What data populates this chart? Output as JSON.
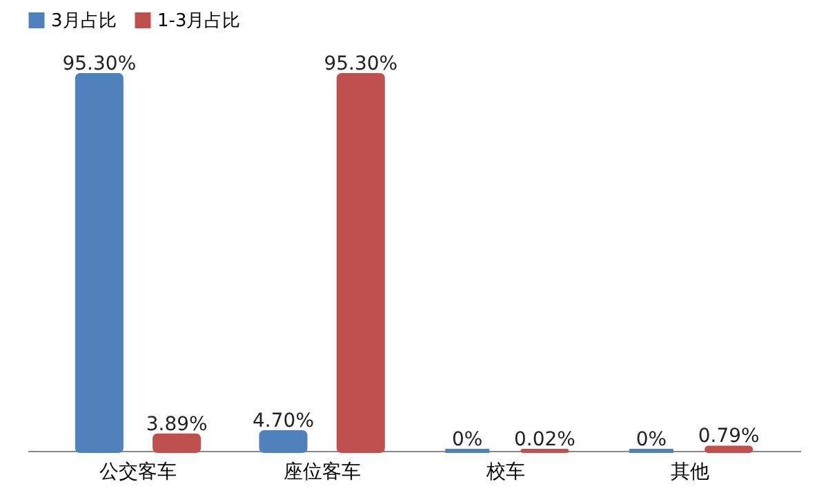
{
  "chart_data": {
    "type": "bar",
    "categories": [
      "公交客车",
      "座位客车",
      "校车",
      "其他"
    ],
    "series": [
      {
        "name": "3月占比",
        "color": "#4f81bd",
        "values": [
          95.3,
          4.7,
          0,
          0
        ],
        "value_labels": [
          "95.30%",
          "4.70%",
          "0%",
          "0%"
        ]
      },
      {
        "name": "1-3月占比",
        "color": "#c0504d",
        "values": [
          3.89,
          95.3,
          0.02,
          0.79
        ],
        "value_labels": [
          "3.89%",
          "95.30%",
          "0.02%",
          "0.79%"
        ]
      }
    ],
    "legend": "top",
    "tick_labels": "x"
  }
}
